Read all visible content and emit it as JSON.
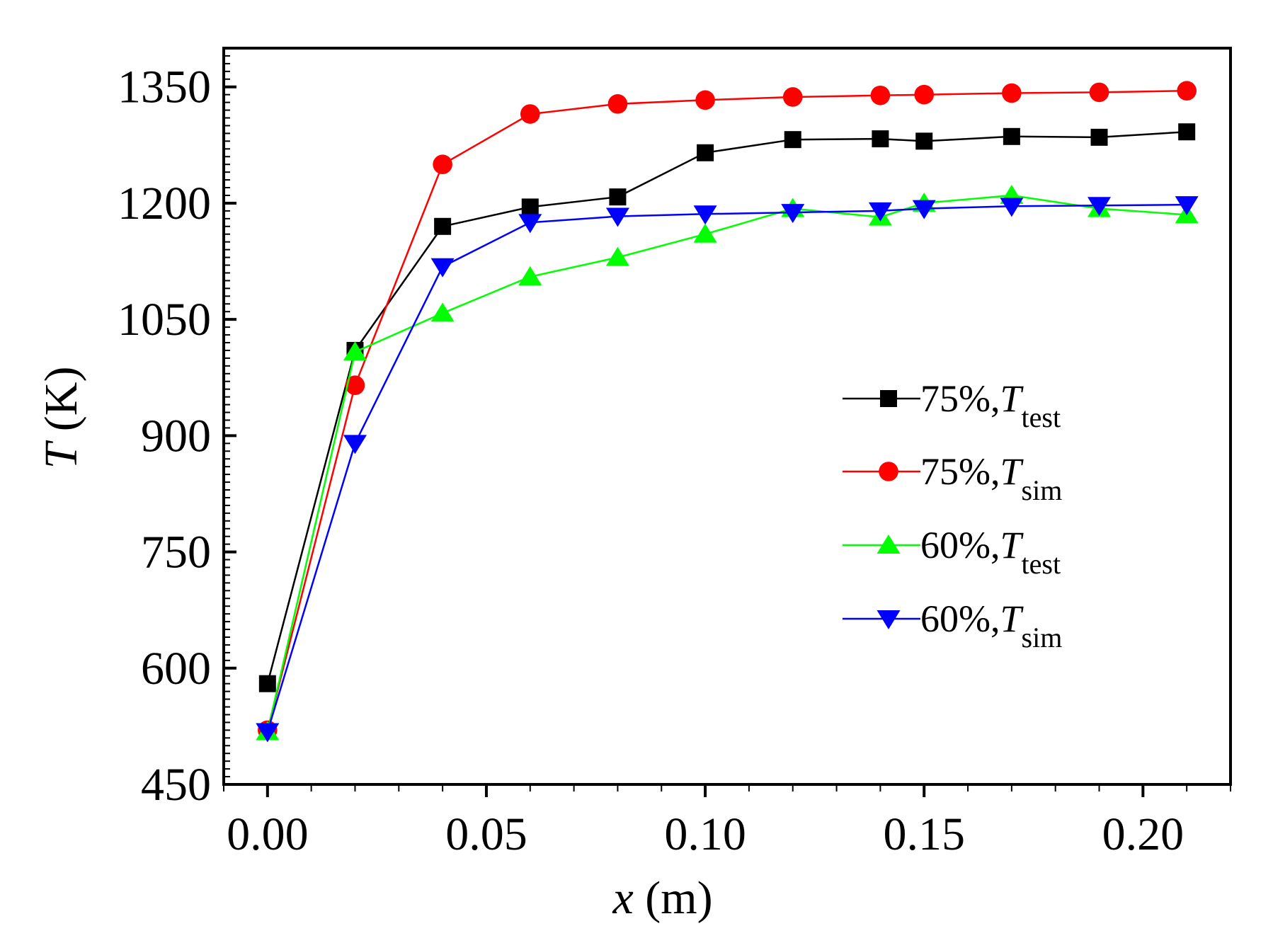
{
  "chart_data": {
    "type": "line",
    "title": "",
    "xlabel": {
      "symbol": "x",
      "unit": "(m)"
    },
    "ylabel": {
      "symbol": "T",
      "unit": "(K)"
    },
    "xlim": [
      -0.01,
      0.22
    ],
    "ylim": [
      450,
      1400
    ],
    "xticks": [
      0.0,
      0.05,
      0.1,
      0.15,
      0.2
    ],
    "xtick_labels": [
      "0.00",
      "0.05",
      "0.10",
      "0.15",
      "0.20"
    ],
    "yticks": [
      450,
      600,
      750,
      900,
      1050,
      1200,
      1350
    ],
    "ytick_labels": [
      "450",
      "600",
      "750",
      "900",
      "1050",
      "1200",
      "1350"
    ],
    "grid": false,
    "legend_position": "center-right",
    "x": [
      0.0,
      0.02,
      0.04,
      0.06,
      0.08,
      0.1,
      0.12,
      0.14,
      0.15,
      0.17,
      0.19,
      0.21
    ],
    "series": [
      {
        "name": "75%,T_test",
        "label_main": "75%,",
        "label_symbol": "T",
        "label_sub": "test",
        "color": "#000000",
        "marker": "square",
        "values": [
          580,
          1010,
          1170,
          1195,
          1208,
          1265,
          1282,
          1283,
          1280,
          1286,
          1285,
          1292
        ]
      },
      {
        "name": "75%,T_sim",
        "label_main": "75%,",
        "label_symbol": "T",
        "label_sub": "sim",
        "color": "#ff0000",
        "marker": "circle",
        "values": [
          520,
          965,
          1250,
          1315,
          1328,
          1333,
          1337,
          1339,
          1340,
          1342,
          1343,
          1345
        ]
      },
      {
        "name": "60%,T_test",
        "label_main": "60%,",
        "label_symbol": "T",
        "label_sub": "test",
        "color": "#00ff00",
        "marker": "triangle-up",
        "values": [
          518,
          1008,
          1058,
          1105,
          1130,
          1160,
          1193,
          1182,
          1200,
          1210,
          1193,
          1185
        ]
      },
      {
        "name": "60%,T_sim",
        "label_main": "60%,",
        "label_symbol": "T",
        "label_sub": "sim",
        "color": "#0000ff",
        "marker": "triangle-down",
        "values": [
          518,
          890,
          1118,
          1175,
          1183,
          1186,
          1188,
          1190,
          1193,
          1196,
          1197,
          1198
        ]
      }
    ]
  }
}
